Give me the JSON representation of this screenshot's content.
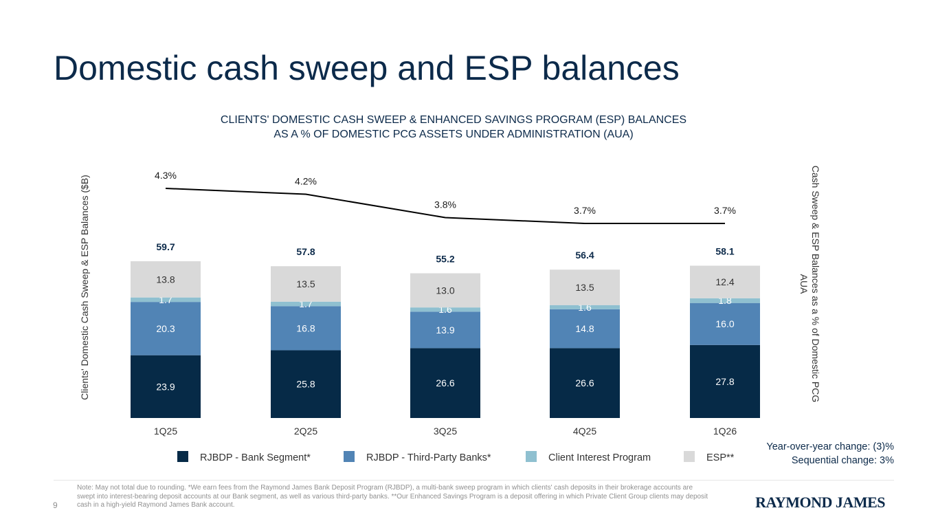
{
  "slide": {
    "title": "Domestic cash sweep and ESP balances",
    "chart_title_line1": "CLIENTS' DOMESTIC CASH SWEEP & ENHANCED SAVINGS PROGRAM (ESP) BALANCES",
    "chart_title_line2": "AS A % OF DOMESTIC PCG ASSETS UNDER ADMINISTRATION (AUA)",
    "yoy_change": "Year-over-year change: (3)%",
    "sequential_change": "Sequential change: 3%",
    "note": "Note: May not total due to rounding. *We earn fees from the Raymond James Bank Deposit Program (RJBDP), a multi-bank sweep program in which clients' cash deposits in their brokerage accounts are swept into interest-bearing deposit accounts at our Bank segment, as well as various third-party banks. **Our Enhanced Savings Program is a deposit offering in which Private Client Group clients may deposit cash in a high-yield Raymond James Bank account.",
    "page_number": "9",
    "logo_text": "RAYMOND JAMES"
  },
  "colors": {
    "title": "#0c2a4a",
    "bank_segment": "#062a47",
    "third_party": "#5184b5",
    "client_interest": "#8fc0d0",
    "esp": "#d9d9d9",
    "line": "#000000",
    "total_label": "#0c2a4a"
  },
  "chart_data": {
    "type": "bar",
    "stacked": true,
    "categories": [
      "1Q25",
      "2Q25",
      "3Q25",
      "4Q25",
      "1Q26"
    ],
    "series": [
      {
        "name": "RJBDP - Bank Segment*",
        "values": [
          23.9,
          25.8,
          26.6,
          26.6,
          27.8
        ],
        "color_key": "bank_segment",
        "label_color": "#ffffff"
      },
      {
        "name": "RJBDP - Third-Party Banks*",
        "values": [
          20.3,
          16.8,
          13.9,
          14.8,
          16.0
        ],
        "color_key": "third_party",
        "label_color": "#ffffff"
      },
      {
        "name": "Client Interest Program",
        "values": [
          1.7,
          1.7,
          1.6,
          1.6,
          1.8
        ],
        "color_key": "client_interest",
        "label_color": "#ffffff"
      },
      {
        "name": "ESP**",
        "values": [
          13.8,
          13.5,
          13.0,
          13.5,
          12.4
        ],
        "color_key": "esp",
        "label_color": "#333333"
      }
    ],
    "totals": [
      59.7,
      57.8,
      55.2,
      56.4,
      58.1
    ],
    "line_series": {
      "values": [
        4.3,
        4.2,
        3.8,
        3.7,
        3.7
      ],
      "labels": [
        "4.3%",
        "4.2%",
        "3.8%",
        "3.7%",
        "3.7%"
      ]
    },
    "ylabel_left": "Clients' Domestic Cash Sweep & ESP Balances ($B)",
    "ylabel_right": "Cash Sweep & ESP Balances as a % of Domestic PCG AUA",
    "legend_position": "bottom"
  }
}
